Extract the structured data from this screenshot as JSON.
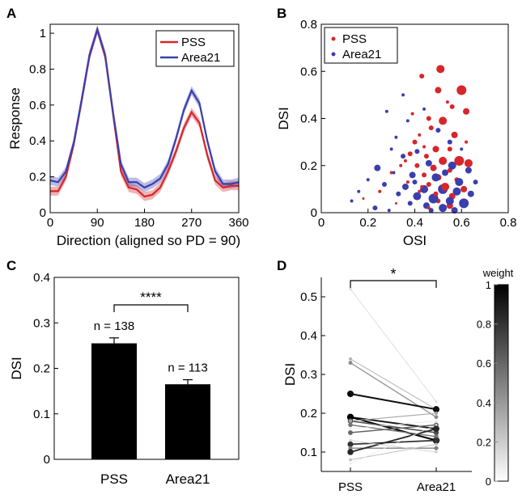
{
  "chart_data": [
    {
      "panel": "A",
      "type": "line",
      "xlabel": "Direction (aligned so PD = 90)",
      "ylabel": "Response",
      "xlim": [
        0,
        360
      ],
      "ylim": [
        0,
        1.05
      ],
      "xticks": [
        0,
        90,
        180,
        270,
        360
      ],
      "yticks": [
        0,
        0.2,
        0.4,
        0.6,
        0.8,
        1
      ],
      "legend_position": "top-right",
      "x": [
        0,
        15,
        30,
        45,
        60,
        75,
        90,
        105,
        120,
        135,
        150,
        165,
        180,
        195,
        210,
        225,
        240,
        255,
        270,
        285,
        300,
        315,
        330,
        345,
        360
      ],
      "series": [
        {
          "name": "PSS",
          "color": "#d7262a",
          "values": [
            0.12,
            0.12,
            0.2,
            0.38,
            0.62,
            0.87,
            1.02,
            0.87,
            0.55,
            0.23,
            0.14,
            0.13,
            0.09,
            0.1,
            0.14,
            0.23,
            0.34,
            0.47,
            0.56,
            0.5,
            0.32,
            0.18,
            0.14,
            0.15,
            0.15
          ],
          "error": 0.025
        },
        {
          "name": "Area21",
          "color": "#3b3fad",
          "values": [
            0.18,
            0.17,
            0.23,
            0.39,
            0.63,
            0.88,
            1.02,
            0.88,
            0.56,
            0.27,
            0.17,
            0.17,
            0.14,
            0.16,
            0.19,
            0.27,
            0.41,
            0.57,
            0.68,
            0.61,
            0.4,
            0.23,
            0.16,
            0.16,
            0.17
          ],
          "error": 0.025
        }
      ]
    },
    {
      "panel": "B",
      "type": "scatter",
      "xlabel": "OSI",
      "ylabel": "DSI",
      "xlim": [
        0,
        0.8
      ],
      "ylim": [
        0,
        0.8
      ],
      "xticks": [
        0,
        0.2,
        0.4,
        0.6,
        0.8
      ],
      "yticks": [
        0,
        0.2,
        0.4,
        0.6,
        0.8
      ],
      "legend_position": "top-left",
      "series": [
        {
          "name": "PSS",
          "color": "#d7262a",
          "points": [
            [
              0.43,
              0.58,
              3
            ],
            [
              0.51,
              0.61,
              5
            ],
            [
              0.5,
              0.52,
              4
            ],
            [
              0.6,
              0.52,
              6
            ],
            [
              0.56,
              0.45,
              3
            ],
            [
              0.62,
              0.43,
              4
            ],
            [
              0.46,
              0.4,
              3
            ],
            [
              0.52,
              0.39,
              5
            ],
            [
              0.47,
              0.36,
              3
            ],
            [
              0.57,
              0.33,
              4
            ],
            [
              0.42,
              0.33,
              2
            ],
            [
              0.4,
              0.3,
              3
            ],
            [
              0.44,
              0.28,
              2
            ],
            [
              0.49,
              0.27,
              4
            ],
            [
              0.55,
              0.27,
              3
            ],
            [
              0.38,
              0.25,
              3
            ],
            [
              0.45,
              0.24,
              3
            ],
            [
              0.52,
              0.22,
              5
            ],
            [
              0.59,
              0.22,
              6
            ],
            [
              0.63,
              0.21,
              5
            ],
            [
              0.34,
              0.2,
              2
            ],
            [
              0.41,
              0.2,
              3
            ],
            [
              0.48,
              0.19,
              4
            ],
            [
              0.55,
              0.18,
              3
            ],
            [
              0.3,
              0.17,
              2
            ],
            [
              0.44,
              0.16,
              3
            ],
            [
              0.5,
              0.15,
              4
            ],
            [
              0.58,
              0.14,
              3
            ],
            [
              0.37,
              0.13,
              2
            ],
            [
              0.46,
              0.12,
              3
            ],
            [
              0.53,
              0.11,
              5
            ],
            [
              0.61,
              0.1,
              4
            ],
            [
              0.42,
              0.09,
              2
            ],
            [
              0.49,
              0.08,
              3
            ],
            [
              0.56,
              0.07,
              4
            ],
            [
              0.5,
              0.05,
              3
            ],
            [
              0.55,
              0.03,
              4
            ],
            [
              0.46,
              0.02,
              2
            ],
            [
              0.25,
              0.09,
              2
            ],
            [
              0.18,
              0.06,
              1.5
            ],
            [
              0.32,
              0.04,
              1.5
            ],
            [
              0.62,
              0.3,
              2
            ],
            [
              0.39,
              0.42,
              2
            ],
            [
              0.54,
              0.47,
              2
            ],
            [
              0.43,
              0.11,
              2
            ],
            [
              0.36,
              0.22,
              2
            ]
          ]
        },
        {
          "name": "Area21",
          "color": "#3b3fad",
          "points": [
            [
              0.35,
              0.5,
              2
            ],
            [
              0.28,
              0.43,
              2
            ],
            [
              0.44,
              0.44,
              2
            ],
            [
              0.37,
              0.39,
              2
            ],
            [
              0.5,
              0.35,
              3
            ],
            [
              0.32,
              0.32,
              2
            ],
            [
              0.3,
              0.27,
              2
            ],
            [
              0.55,
              0.3,
              3
            ],
            [
              0.6,
              0.27,
              2
            ],
            [
              0.41,
              0.26,
              3
            ],
            [
              0.35,
              0.24,
              3
            ],
            [
              0.46,
              0.21,
              4
            ],
            [
              0.56,
              0.2,
              5
            ],
            [
              0.63,
              0.18,
              4
            ],
            [
              0.24,
              0.19,
              4
            ],
            [
              0.31,
              0.17,
              2
            ],
            [
              0.39,
              0.16,
              4
            ],
            [
              0.49,
              0.15,
              5
            ],
            [
              0.59,
              0.13,
              5
            ],
            [
              0.66,
              0.13,
              3
            ],
            [
              0.2,
              0.14,
              2
            ],
            [
              0.27,
              0.12,
              3
            ],
            [
              0.36,
              0.11,
              4
            ],
            [
              0.44,
              0.1,
              5
            ],
            [
              0.52,
              0.1,
              6
            ],
            [
              0.58,
              0.09,
              5
            ],
            [
              0.64,
              0.08,
              4
            ],
            [
              0.33,
              0.08,
              3
            ],
            [
              0.41,
              0.07,
              5
            ],
            [
              0.48,
              0.06,
              6
            ],
            [
              0.55,
              0.05,
              5
            ],
            [
              0.61,
              0.04,
              6
            ],
            [
              0.38,
              0.04,
              3
            ],
            [
              0.45,
              0.03,
              4
            ],
            [
              0.52,
              0.02,
              5
            ],
            [
              0.57,
              0.01,
              4
            ],
            [
              0.16,
              0.09,
              2
            ],
            [
              0.13,
              0.05,
              2
            ],
            [
              0.23,
              0.02,
              3
            ],
            [
              0.29,
              0.01,
              2
            ],
            [
              0.47,
              0.01,
              3
            ],
            [
              0.4,
              0.13,
              3
            ],
            [
              0.53,
              0.17,
              4
            ]
          ]
        }
      ]
    },
    {
      "panel": "C",
      "type": "bar",
      "ylabel": "DSI",
      "ylim": [
        0,
        0.4
      ],
      "yticks": [
        0,
        0.1,
        0.2,
        0.3,
        0.4
      ],
      "categories": [
        "PSS",
        "Area21"
      ],
      "values": [
        0.255,
        0.165
      ],
      "errors": [
        0.012,
        0.01
      ],
      "annotations": [
        "n = 138",
        "n = 113"
      ],
      "significance": "****",
      "color": "#000000"
    },
    {
      "panel": "D",
      "type": "line",
      "ylabel": "DSI",
      "ylim": [
        0.05,
        0.55
      ],
      "yticks": [
        0.1,
        0.2,
        0.3,
        0.4,
        0.5
      ],
      "categories": [
        "PSS",
        "Area21"
      ],
      "significance": "*",
      "colorbar": {
        "label": "weight",
        "ticks": [
          0,
          0.2,
          0.4,
          0.6,
          0.8,
          1
        ]
      },
      "pairs": [
        {
          "values": [
            0.52,
            0.23
          ],
          "weight": 0.15
        },
        {
          "values": [
            0.34,
            0.21
          ],
          "weight": 0.3
        },
        {
          "values": [
            0.33,
            0.19
          ],
          "weight": 0.45
        },
        {
          "values": [
            0.25,
            0.21
          ],
          "weight": 0.95
        },
        {
          "values": [
            0.19,
            0.16
          ],
          "weight": 0.9
        },
        {
          "values": [
            0.19,
            0.13
          ],
          "weight": 1.0
        },
        {
          "values": [
            0.18,
            0.15
          ],
          "weight": 0.7
        },
        {
          "values": [
            0.18,
            0.2
          ],
          "weight": 0.35
        },
        {
          "values": [
            0.17,
            0.14
          ],
          "weight": 0.55
        },
        {
          "values": [
            0.15,
            0.17
          ],
          "weight": 0.6
        },
        {
          "values": [
            0.12,
            0.13
          ],
          "weight": 0.8
        },
        {
          "values": [
            0.11,
            0.11
          ],
          "weight": 0.5
        },
        {
          "values": [
            0.1,
            0.16
          ],
          "weight": 0.85
        },
        {
          "values": [
            0.08,
            0.12
          ],
          "weight": 0.25
        },
        {
          "values": [
            0.13,
            0.1
          ],
          "weight": 0.2
        },
        {
          "values": [
            0.16,
            0.18
          ],
          "weight": 0.1
        },
        {
          "values": [
            0.07,
            0.17
          ],
          "weight": 0.1
        }
      ]
    }
  ]
}
